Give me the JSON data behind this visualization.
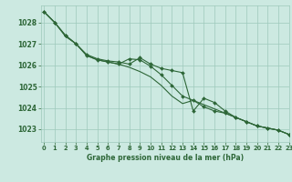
{
  "background_color": "#cce9e1",
  "grid_color": "#9ec8bb",
  "line_color": "#2d6637",
  "ylim": [
    1022.4,
    1028.8
  ],
  "xlim": [
    -0.3,
    23
  ],
  "yticks": [
    1023,
    1024,
    1025,
    1026,
    1027,
    1028
  ],
  "xticks": [
    0,
    1,
    2,
    3,
    4,
    5,
    6,
    7,
    8,
    9,
    10,
    11,
    12,
    13,
    14,
    15,
    16,
    17,
    18,
    19,
    20,
    21,
    22,
    23
  ],
  "xlabel": "Graphe pression niveau de la mer (hPa)",
  "series": [
    {
      "y": [
        1028.5,
        1028.0,
        1027.4,
        1027.0,
        1026.5,
        1026.3,
        1026.2,
        1026.15,
        1026.05,
        1026.35,
        1026.05,
        1025.85,
        1025.75,
        1025.65,
        1023.85,
        1024.45,
        1024.25,
        1023.85,
        1023.55,
        1023.35,
        1023.15,
        1023.05,
        1022.95,
        1022.75
      ],
      "marker": true
    },
    {
      "y": [
        1028.5,
        1028.0,
        1027.4,
        1027.0,
        1026.45,
        1026.25,
        1026.15,
        1026.05,
        1026.3,
        1026.25,
        1025.95,
        1025.55,
        1025.05,
        1024.55,
        1024.35,
        1024.05,
        1023.85,
        1023.75,
        1023.55,
        1023.35,
        1023.15,
        1023.05,
        1022.95,
        1022.75
      ],
      "marker": true
    },
    {
      "y": [
        1028.5,
        1028.0,
        1027.35,
        1027.0,
        1026.45,
        1026.25,
        1026.15,
        1026.05,
        1025.9,
        1025.7,
        1025.45,
        1025.05,
        1024.55,
        1024.2,
        1024.35,
        1024.15,
        1023.95,
        1023.75,
        1023.55,
        1023.35,
        1023.15,
        1023.05,
        1022.95,
        1022.75
      ],
      "marker": false
    }
  ]
}
